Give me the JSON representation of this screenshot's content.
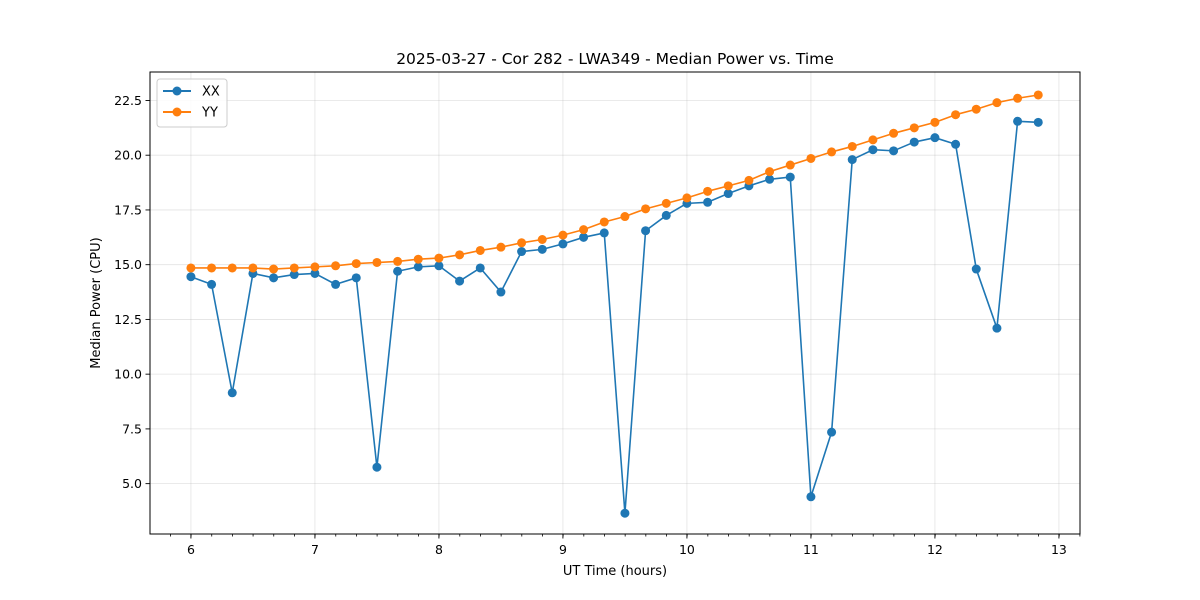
{
  "chart_data": {
    "type": "line",
    "title": "2025-03-27 - Cor 282 - LWA349 - Median Power vs. Time",
    "xlabel": "UT Time (hours)",
    "ylabel": "Median Power (CPU)",
    "xlim": [
      5.67,
      13.17
    ],
    "ylim": [
      2.7,
      23.8
    ],
    "xticks": [
      6,
      7,
      8,
      9,
      10,
      11,
      12,
      13
    ],
    "xtick_labels": [
      "6",
      "7",
      "8",
      "9",
      "10",
      "11",
      "12",
      "13"
    ],
    "xminor_step": 0.1667,
    "yticks": [
      5.0,
      7.5,
      10.0,
      12.5,
      15.0,
      17.5,
      20.0,
      22.5
    ],
    "ytick_labels": [
      "5.0",
      "7.5",
      "10.0",
      "12.5",
      "15.0",
      "17.5",
      "20.0",
      "22.5"
    ],
    "grid": true,
    "legend": "top-left",
    "x": [
      6.0,
      6.1667,
      6.3333,
      6.5,
      6.6667,
      6.8333,
      7.0,
      7.1667,
      7.3333,
      7.5,
      7.6667,
      7.8333,
      8.0,
      8.1667,
      8.3333,
      8.5,
      8.6667,
      8.8333,
      9.0,
      9.1667,
      9.3333,
      9.5,
      9.6667,
      9.8333,
      10.0,
      10.1667,
      10.3333,
      10.5,
      10.6667,
      10.8333,
      11.0,
      11.1667,
      11.3333,
      11.5,
      11.6667,
      11.8333,
      12.0,
      12.1667,
      12.3333,
      12.5,
      12.6667,
      12.8333
    ],
    "series": [
      {
        "name": "XX",
        "color": "#1f77b4",
        "values": [
          14.45,
          14.1,
          9.15,
          14.6,
          14.4,
          14.55,
          14.6,
          14.1,
          14.4,
          5.75,
          14.7,
          14.9,
          14.95,
          14.25,
          14.85,
          13.75,
          15.6,
          15.7,
          15.95,
          16.25,
          16.45,
          3.65,
          16.55,
          17.25,
          17.8,
          17.85,
          18.25,
          18.6,
          18.9,
          19.0,
          4.4,
          7.35,
          19.8,
          20.25,
          20.2,
          20.6,
          20.8,
          20.5,
          14.8,
          12.1,
          21.55,
          21.5
        ]
      },
      {
        "name": "YY",
        "color": "#ff7f0e",
        "values": [
          14.85,
          14.85,
          14.85,
          14.85,
          14.8,
          14.85,
          14.9,
          14.95,
          15.05,
          15.1,
          15.15,
          15.25,
          15.3,
          15.45,
          15.65,
          15.8,
          16.0,
          16.15,
          16.35,
          16.6,
          16.95,
          17.2,
          17.55,
          17.8,
          18.05,
          18.35,
          18.6,
          18.85,
          19.25,
          19.55,
          19.85,
          20.15,
          20.4,
          20.7,
          21.0,
          21.25,
          21.5,
          21.85,
          22.1,
          22.4,
          22.6,
          22.75
        ]
      }
    ]
  }
}
